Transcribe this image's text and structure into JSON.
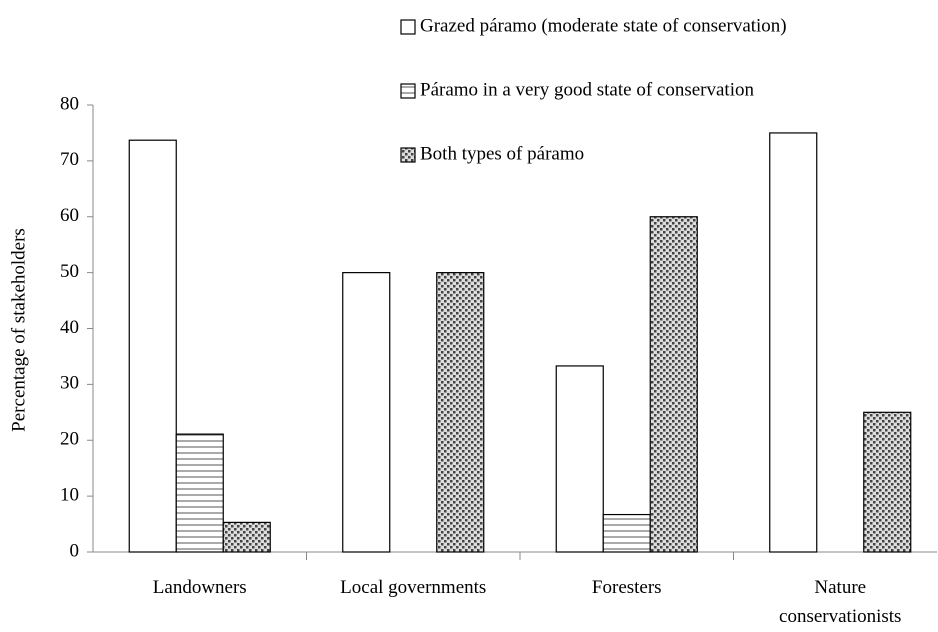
{
  "chart_data": {
    "type": "bar",
    "y_label": "Percentage of stakeholders",
    "categories": [
      "Landowners",
      "Local governments",
      "Foresters",
      "Nature conservationists"
    ],
    "series": [
      {
        "name": "Grazed páramo (moderate state of conservation)",
        "color": "#ffffff",
        "pattern": "solid",
        "values": [
          73.7,
          50,
          33.3,
          75
        ]
      },
      {
        "name": "Páramo in a very good state of conservation",
        "color": "#ffffff",
        "pattern": "horizontal",
        "values": [
          21.1,
          0,
          6.7,
          0
        ]
      },
      {
        "name": "Both types of páramo",
        "color": "#ffffff",
        "pattern": "dots",
        "values": [
          5.3,
          50,
          60,
          25
        ]
      }
    ],
    "ylim": [
      0,
      80
    ],
    "yticks": [
      0,
      10,
      20,
      30,
      40,
      50,
      60,
      70,
      80
    ],
    "grid": false,
    "legend": "top"
  }
}
